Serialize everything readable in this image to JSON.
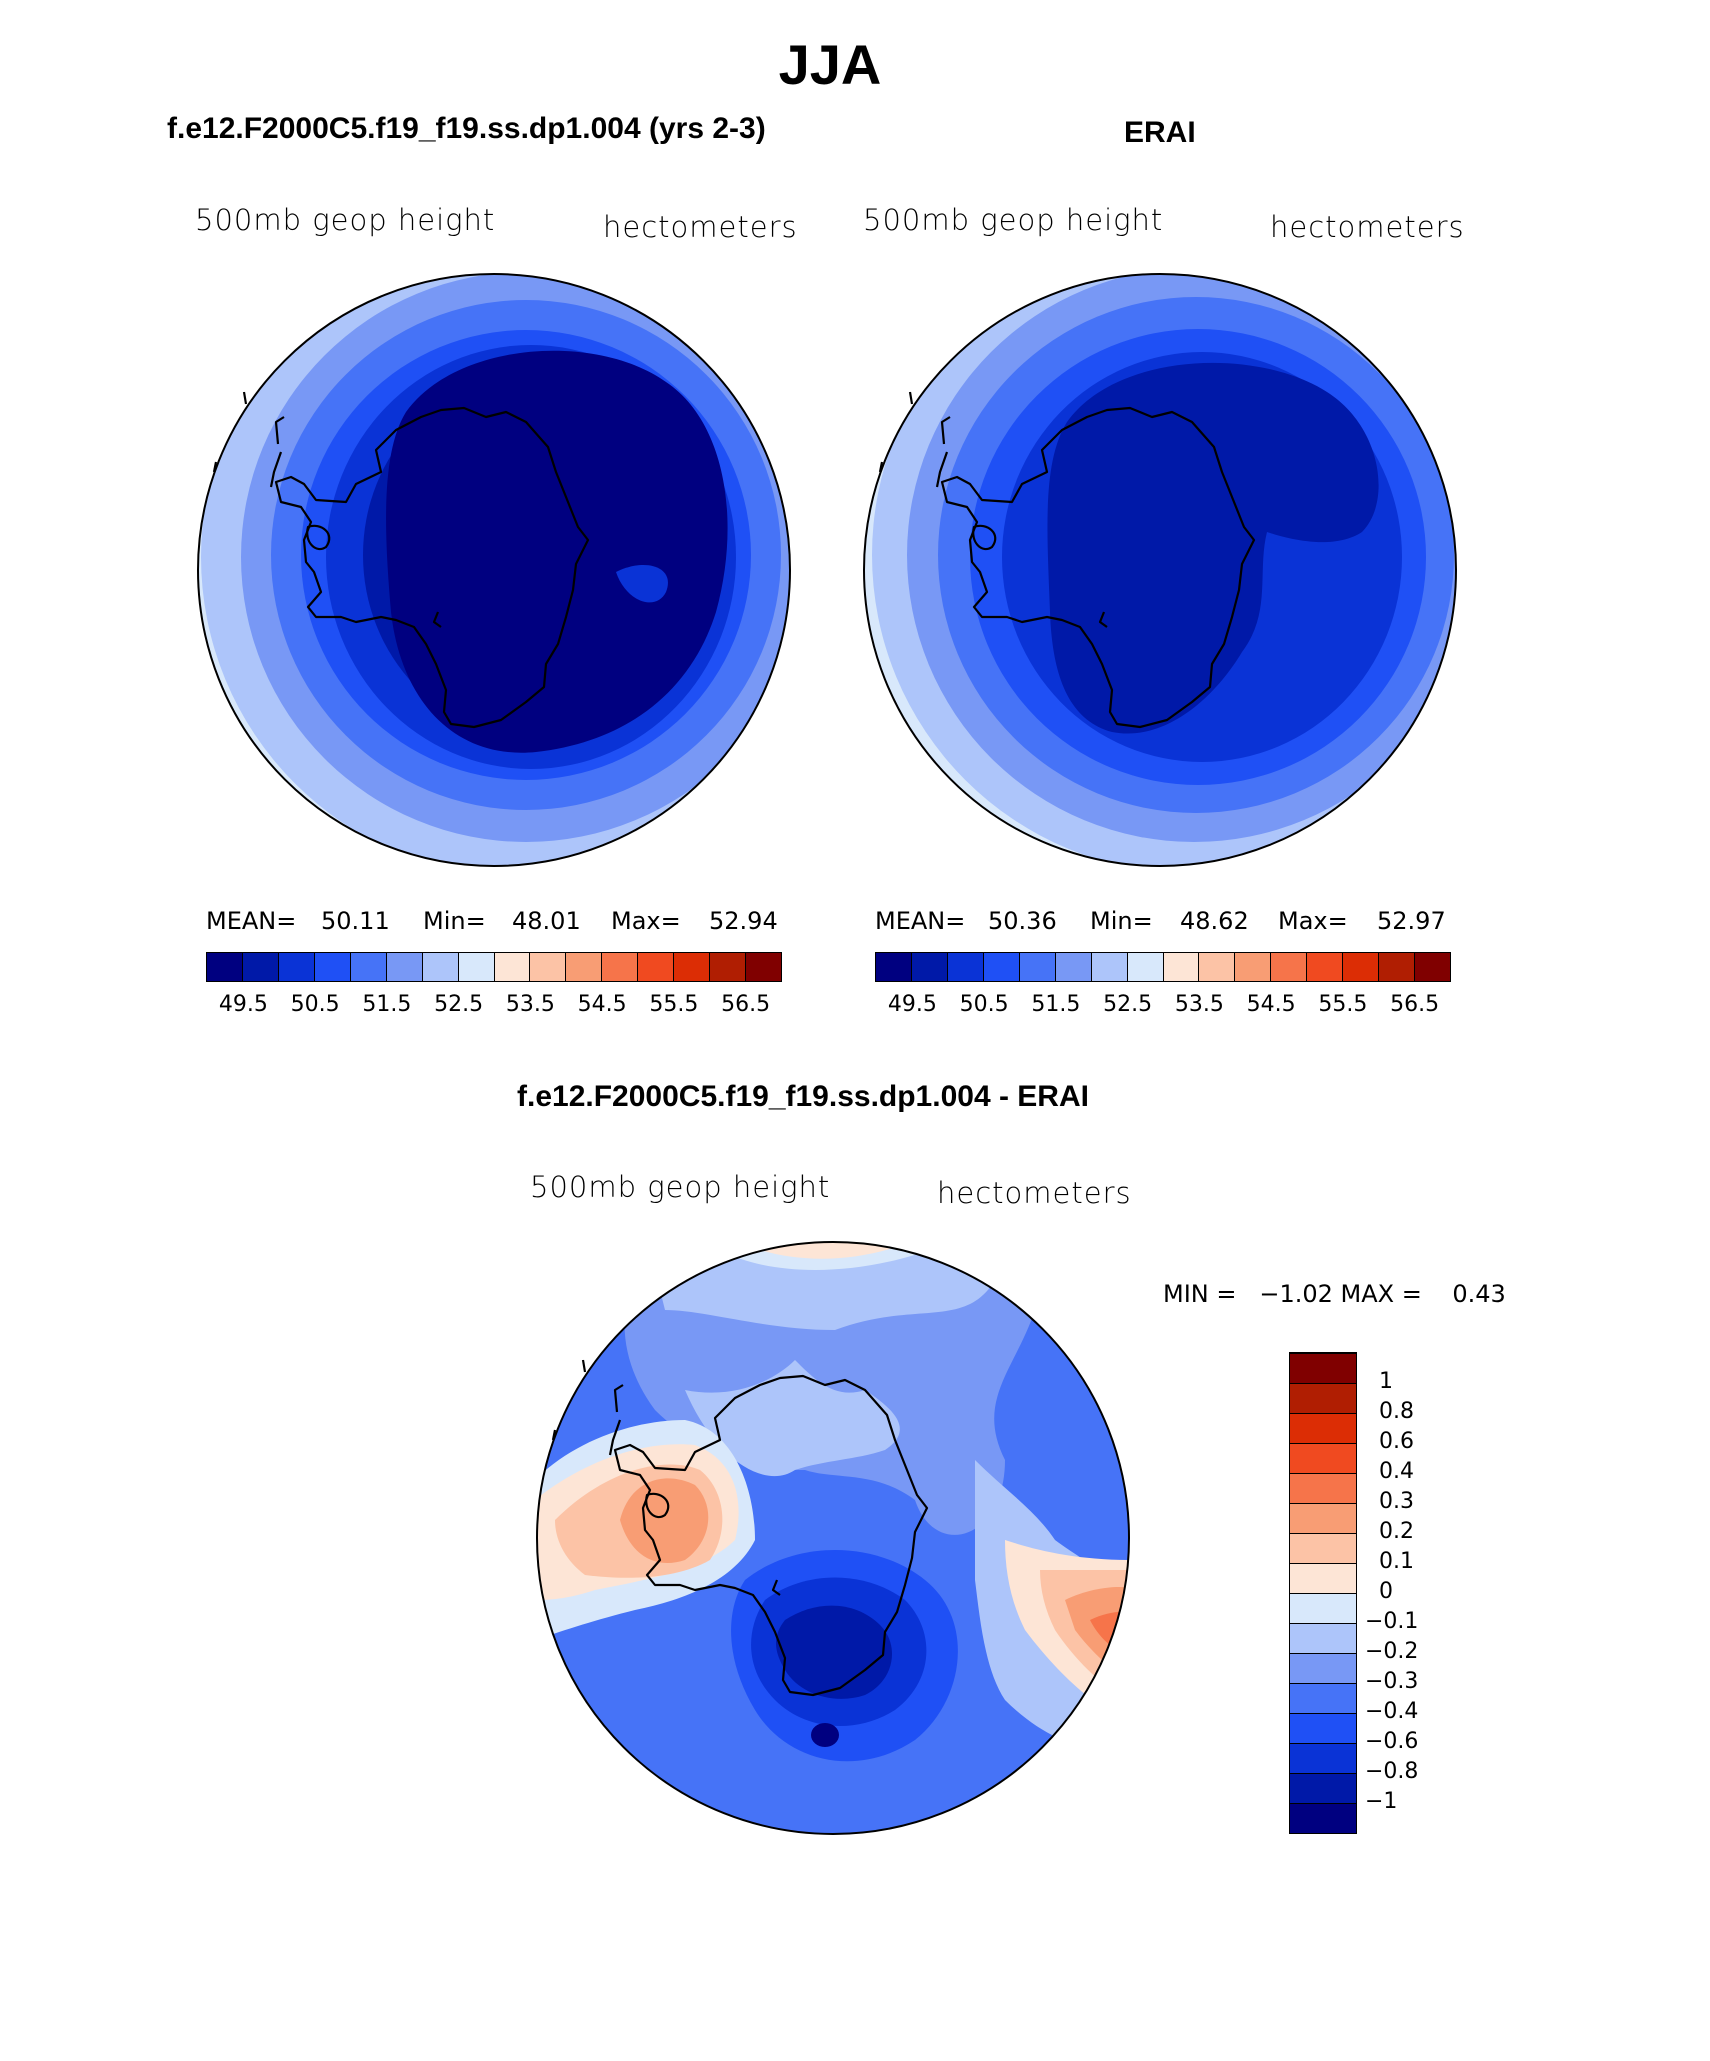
{
  "title": "JJA",
  "panels": {
    "model": {
      "subtitle": "f.e12.F2000C5.f19_f19.ss.dp1.004 (yrs 2-3)",
      "left_label": "500mb geop height",
      "right_label": "hectometers",
      "mean_label": "MEAN=",
      "mean": "50.11",
      "min_label": "Min=",
      "min": "48.01",
      "max_label": "Max=",
      "max": "52.94"
    },
    "obs": {
      "subtitle": "ERAI",
      "left_label": "500mb geop height",
      "right_label": "hectometers",
      "mean_label": "MEAN=",
      "mean": "50.36",
      "min_label": "Min=",
      "min": "48.62",
      "max_label": "Max=",
      "max": "52.97"
    },
    "diff": {
      "subtitle": "f.e12.F2000C5.f19_f19.ss.dp1.004 - ERAI",
      "left_label": "500mb geop height",
      "right_label": "hectometers",
      "minmax": "MIN =   −1.02 MAX =    0.43"
    }
  },
  "chart_data": [
    {
      "type": "heatmap",
      "title": "f.e12.F2000C5.f19_f19.ss.dp1.004 (yrs 2-3)",
      "variable": "500mb geop height",
      "units": "hectometers",
      "projection": "south polar stereographic",
      "stats": {
        "mean": 50.11,
        "min": 48.01,
        "max": 52.94
      },
      "colorbar_ticks": [
        "49.5",
        "50.5",
        "51.5",
        "52.5",
        "53.5",
        "54.5",
        "55.5",
        "56.5"
      ],
      "colorbar_colors": [
        "#000080",
        "#0019a8",
        "#0a33d6",
        "#1f50f5",
        "#4673f7",
        "#7898f5",
        "#adc5fa",
        "#d8e8fb",
        "#fde5d6",
        "#fcc3a6",
        "#f89d74",
        "#f6744a",
        "#f04a20",
        "#dc2d05",
        "#b01e02",
        "#800000"
      ]
    },
    {
      "type": "heatmap",
      "title": "ERAI",
      "variable": "500mb geop height",
      "units": "hectometers",
      "projection": "south polar stereographic",
      "stats": {
        "mean": 50.36,
        "min": 48.62,
        "max": 52.97
      },
      "colorbar_ticks": [
        "49.5",
        "50.5",
        "51.5",
        "52.5",
        "53.5",
        "54.5",
        "55.5",
        "56.5"
      ],
      "colorbar_colors": [
        "#000080",
        "#0019a8",
        "#0a33d6",
        "#1f50f5",
        "#4673f7",
        "#7898f5",
        "#adc5fa",
        "#d8e8fb",
        "#fde5d6",
        "#fcc3a6",
        "#f89d74",
        "#f6744a",
        "#f04a20",
        "#dc2d05",
        "#b01e02",
        "#800000"
      ]
    },
    {
      "type": "heatmap",
      "title": "f.e12.F2000C5.f19_f19.ss.dp1.004 - ERAI",
      "variable": "500mb geop height",
      "units": "hectometers",
      "projection": "south polar stereographic",
      "stats": {
        "min": -1.02,
        "max": 0.43
      },
      "colorbar_ticks": [
        "−1",
        "−0.8",
        "−0.6",
        "−0.4",
        "−0.3",
        "−0.2",
        "−0.1",
        "0",
        "0.1",
        "0.2",
        "0.3",
        "0.4",
        "0.6",
        "0.8",
        "1"
      ],
      "colorbar_colors": [
        "#000080",
        "#0019a8",
        "#0a33d6",
        "#1f50f5",
        "#4673f7",
        "#7898f5",
        "#adc5fa",
        "#d8e8fb",
        "#fde5d6",
        "#fcc3a6",
        "#f89d74",
        "#f6744a",
        "#f04a20",
        "#dc2d05",
        "#b01e02",
        "#800000"
      ]
    }
  ]
}
